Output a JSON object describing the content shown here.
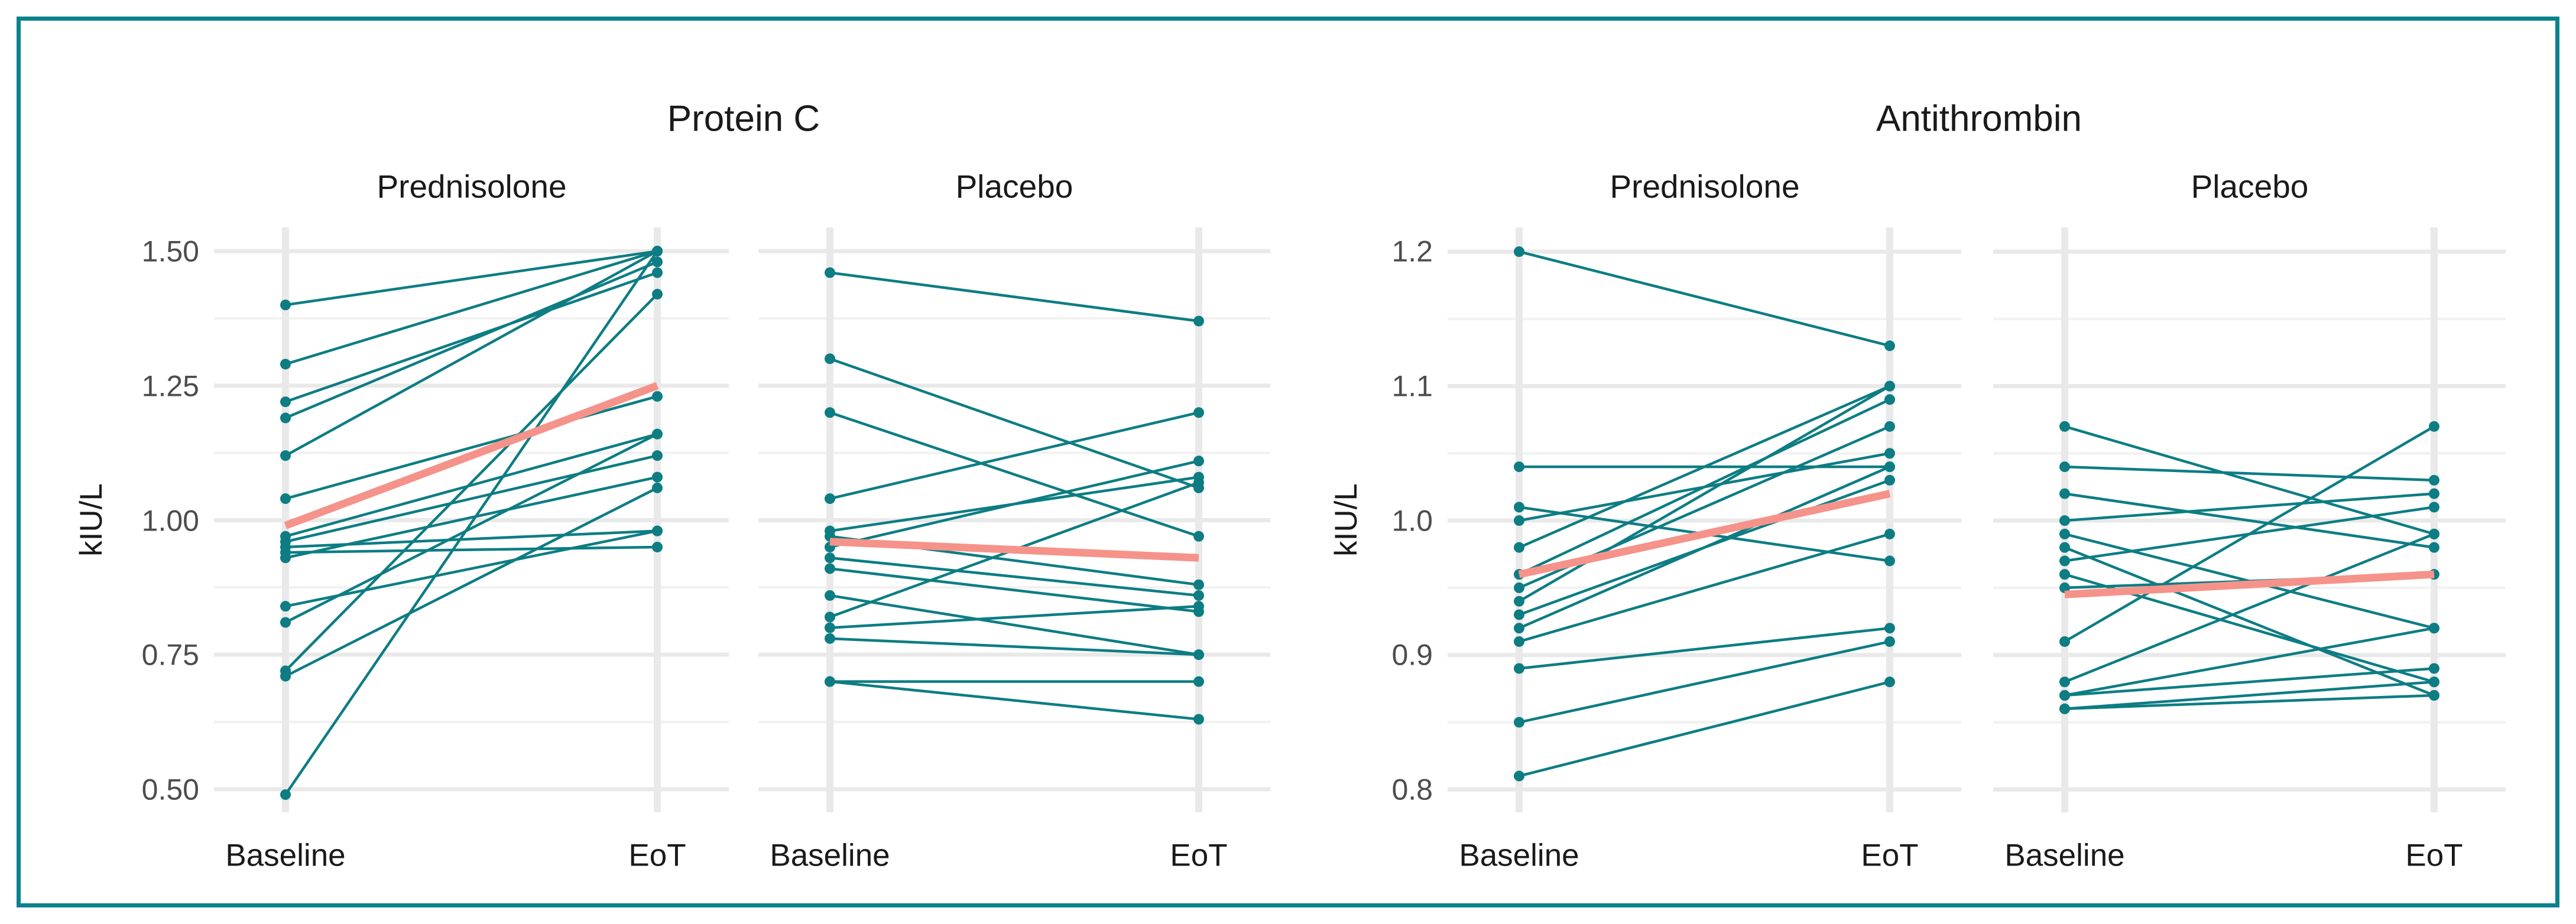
{
  "chart_data": {
    "type": "line",
    "description": "Paired individual-subject lines from Baseline to End of Treatment with thick mean trend line",
    "unit_label": "kIU/L",
    "x_categories": [
      "Baseline",
      "EoT"
    ],
    "legend": "none",
    "grid": "horizontal major + minor, light vertical band at each x category",
    "groups": [
      {
        "title": "Protein C",
        "yticks": [
          "1.50",
          "1.25",
          "1.00",
          "0.75",
          "0.50"
        ],
        "ylim": [
          0.457,
          1.544
        ],
        "panels": [
          {
            "subtitle": "Prednisolone",
            "series": [
              [
                1.4,
                1.5
              ],
              [
                1.29,
                1.5
              ],
              [
                1.22,
                1.46
              ],
              [
                1.19,
                1.48
              ],
              [
                1.12,
                1.5
              ],
              [
                1.04,
                1.23
              ],
              [
                0.97,
                1.16
              ],
              [
                0.96,
                1.12
              ],
              [
                0.95,
                0.98
              ],
              [
                0.94,
                0.95
              ],
              [
                0.93,
                1.08
              ],
              [
                0.84,
                0.98
              ],
              [
                0.81,
                1.16
              ],
              [
                0.72,
                1.42
              ],
              [
                0.71,
                1.06
              ],
              [
                0.49,
                1.5
              ]
            ],
            "mean": [
              0.99,
              1.25
            ]
          },
          {
            "subtitle": "Placebo",
            "series": [
              [
                1.46,
                1.37
              ],
              [
                1.3,
                1.06
              ],
              [
                1.2,
                0.97
              ],
              [
                1.04,
                1.2
              ],
              [
                0.98,
                1.08
              ],
              [
                0.97,
                0.88
              ],
              [
                0.95,
                1.11
              ],
              [
                0.93,
                0.86
              ],
              [
                0.91,
                0.83
              ],
              [
                0.86,
                0.75
              ],
              [
                0.82,
                1.07
              ],
              [
                0.8,
                0.84
              ],
              [
                0.78,
                0.75
              ],
              [
                0.7,
                0.7
              ],
              [
                0.7,
                0.63
              ]
            ],
            "mean": [
              0.96,
              0.93
            ]
          }
        ]
      },
      {
        "title": "Antithrombin",
        "yticks": [
          "1.2",
          "1.1",
          "1.0",
          "0.9",
          "0.8"
        ],
        "ylim": [
          0.783,
          1.218
        ],
        "panels": [
          {
            "subtitle": "Prednisolone",
            "series": [
              [
                1.2,
                1.13
              ],
              [
                1.04,
                1.04
              ],
              [
                1.01,
                0.97
              ],
              [
                1.0,
                1.05
              ],
              [
                0.98,
                1.1
              ],
              [
                0.96,
                1.09
              ],
              [
                0.95,
                1.07
              ],
              [
                0.94,
                1.1
              ],
              [
                0.93,
                1.03
              ],
              [
                0.92,
                1.04
              ],
              [
                0.91,
                0.99
              ],
              [
                0.89,
                0.92
              ],
              [
                0.85,
                0.91
              ],
              [
                0.81,
                0.88
              ]
            ],
            "mean": [
              0.96,
              1.02
            ]
          },
          {
            "subtitle": "Placebo",
            "series": [
              [
                1.07,
                0.99
              ],
              [
                1.04,
                1.03
              ],
              [
                1.02,
                0.98
              ],
              [
                1.0,
                1.02
              ],
              [
                0.99,
                0.92
              ],
              [
                0.98,
                0.87
              ],
              [
                0.97,
                1.01
              ],
              [
                0.96,
                0.88
              ],
              [
                0.95,
                0.96
              ],
              [
                0.91,
                1.07
              ],
              [
                0.88,
                0.99
              ],
              [
                0.87,
                0.92
              ],
              [
                0.87,
                0.89
              ],
              [
                0.86,
                0.88
              ],
              [
                0.86,
                0.87
              ]
            ],
            "mean": [
              0.945,
              0.96
            ]
          }
        ]
      }
    ],
    "colors": {
      "line": "#0D7D83",
      "mean": "#F5938A",
      "grid_major": "#E9E9E9",
      "grid_minor": "#F2F2F2",
      "band": "#E9E9E9",
      "border": "#0B828E",
      "tick_text": "#4D4D4D",
      "text": "#1A1A1A"
    }
  }
}
